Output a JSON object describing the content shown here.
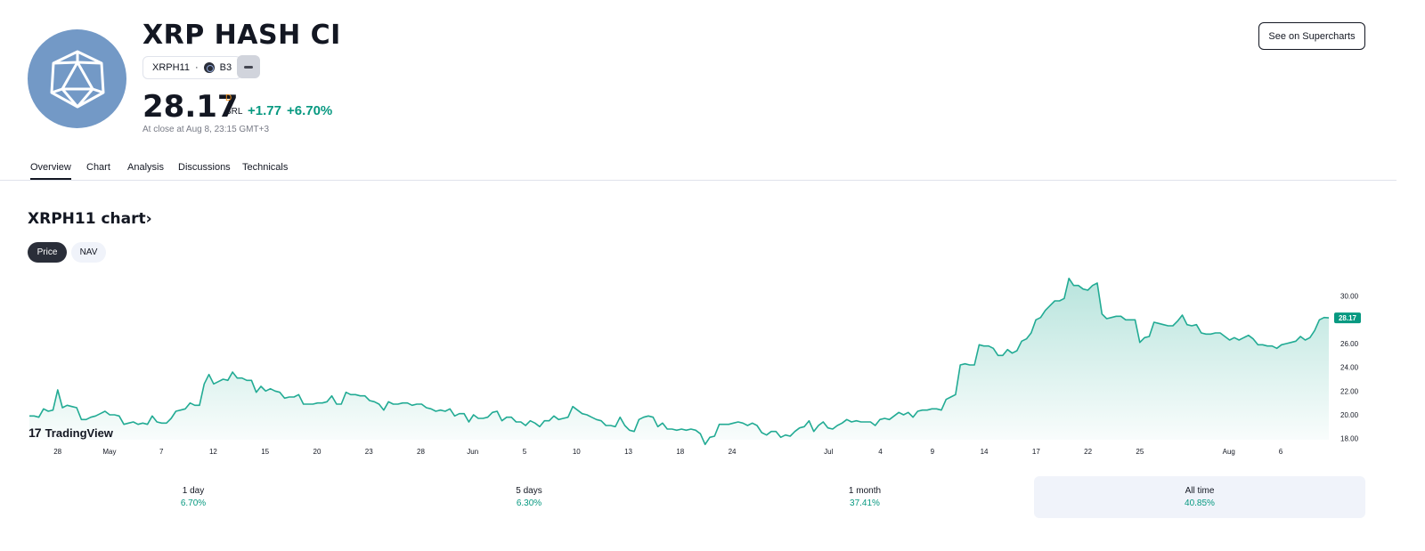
{
  "header": {
    "title": "XRP HASH CI",
    "ticker": "XRPH11",
    "exchange": "B3",
    "price": "28.17",
    "price_flag": "D",
    "currency": "BRL",
    "change_abs": "+1.77",
    "change_pct": "+6.70%",
    "close_time": "At close at Aug 8, 23:15 GMT+3",
    "supercharts_label": "See on Supercharts"
  },
  "tabs": [
    "Overview",
    "Chart",
    "Analysis",
    "Discussions",
    "Technicals"
  ],
  "chart_section": {
    "title": "XRPH11 chart",
    "title_arrow": "›",
    "price_toggle": "Price",
    "nav_toggle": "NAV",
    "current_price_label": "28.17",
    "watermark": "TradingView",
    "watermark_mark": "17"
  },
  "colors": {
    "accent_green": "#089981",
    "line": "#22ab94",
    "logo_bg": "#7399c6"
  },
  "chart_data": {
    "type": "area",
    "x_tick_labels": [
      "28",
      "May",
      "7",
      "12",
      "15",
      "20",
      "23",
      "28",
      "Jun",
      "5",
      "10",
      "13",
      "18",
      "24",
      "Jul",
      "4",
      "9",
      "14",
      "17",
      "22",
      "25",
      "Aug",
      "6"
    ],
    "y_tick_labels": [
      "30.00",
      "28.00",
      "26.00",
      "24.00",
      "22.00",
      "20.00",
      "18.00"
    ],
    "ylim": [
      17.9,
      31.7
    ],
    "last_value": 28.17,
    "values": [
      19.9,
      19.9,
      19.8,
      20.5,
      20.3,
      20.4,
      22.1,
      20.6,
      20.8,
      20.7,
      20.6,
      19.6,
      19.6,
      19.8,
      19.9,
      20.1,
      20.3,
      20.0,
      20.0,
      19.9,
      19.2,
      19.3,
      19.4,
      19.2,
      19.3,
      19.2,
      19.9,
      19.4,
      19.3,
      19.3,
      19.7,
      20.3,
      20.4,
      20.5,
      21.0,
      20.8,
      20.8,
      22.6,
      23.4,
      22.6,
      22.8,
      23.0,
      22.9,
      23.6,
      23.1,
      23.1,
      22.9,
      22.9,
      21.9,
      22.4,
      22.0,
      22.2,
      22.0,
      21.9,
      21.4,
      21.5,
      21.5,
      21.7,
      20.9,
      20.9,
      20.9,
      21.0,
      21.0,
      21.1,
      21.6,
      20.9,
      20.9,
      21.9,
      21.7,
      21.7,
      21.6,
      21.6,
      21.2,
      21.1,
      20.9,
      20.4,
      21.1,
      20.9,
      20.9,
      21.0,
      21.0,
      20.8,
      20.9,
      20.9,
      20.6,
      20.5,
      20.3,
      20.4,
      20.3,
      20.5,
      19.9,
      20.1,
      20.1,
      19.4,
      20.0,
      19.7,
      19.7,
      19.8,
      20.2,
      20.3,
      19.5,
      19.8,
      19.8,
      19.4,
      19.4,
      19.1,
      19.5,
      19.3,
      19.0,
      19.5,
      19.5,
      19.9,
      19.6,
      19.7,
      19.8,
      20.7,
      20.4,
      20.1,
      20.0,
      19.8,
      19.6,
      19.5,
      19.1,
      19.1,
      19.0,
      19.8,
      19.1,
      18.7,
      18.6,
      19.6,
      19.8,
      19.9,
      19.8,
      19.0,
      19.3,
      18.8,
      18.8,
      18.7,
      18.8,
      18.7,
      18.8,
      18.7,
      18.4,
      17.5,
      18.1,
      18.2,
      19.2,
      19.2,
      19.2,
      19.3,
      19.4,
      19.3,
      19.1,
      19.3,
      19.1,
      18.5,
      18.3,
      18.6,
      18.6,
      18.1,
      18.3,
      18.2,
      18.6,
      18.9,
      19.0,
      19.5,
      18.6,
      19.1,
      19.4,
      18.9,
      18.8,
      19.1,
      19.3,
      19.6,
      19.4,
      19.5,
      19.4,
      19.4,
      19.4,
      19.1,
      19.6,
      19.7,
      19.6,
      19.9,
      20.2,
      20.0,
      20.2,
      19.8,
      20.3,
      20.4,
      20.4,
      20.5,
      20.5,
      20.4,
      21.3,
      21.5,
      21.7,
      24.2,
      24.3,
      24.2,
      24.2,
      25.9,
      25.8,
      25.8,
      25.6,
      25.0,
      25.0,
      25.5,
      25.2,
      25.4,
      26.2,
      26.4,
      26.9,
      28.0,
      28.2,
      28.8,
      29.2,
      29.6,
      29.6,
      29.8,
      31.5,
      30.9,
      30.9,
      30.6,
      30.5,
      30.9,
      31.1,
      28.5,
      28.1,
      28.2,
      28.3,
      28.3,
      28.0,
      28.0,
      28.0,
      26.1,
      26.5,
      26.6,
      27.8,
      27.7,
      27.6,
      27.5,
      27.5,
      27.9,
      28.4,
      27.6,
      27.5,
      27.6,
      26.9,
      26.8,
      26.8,
      26.9,
      26.9,
      26.6,
      26.3,
      26.5,
      26.3,
      26.5,
      26.7,
      26.4,
      25.9,
      25.9,
      25.8,
      25.8,
      25.6,
      25.9,
      26.0,
      26.1,
      26.2,
      26.6,
      26.3,
      26.5,
      27.1,
      28.0,
      28.2,
      28.17
    ]
  },
  "performance": [
    {
      "label": "1 day",
      "value": "6.70%"
    },
    {
      "label": "5 days",
      "value": "6.30%"
    },
    {
      "label": "1 month",
      "value": "37.41%"
    },
    {
      "label": "All time",
      "value": "40.85%"
    }
  ]
}
